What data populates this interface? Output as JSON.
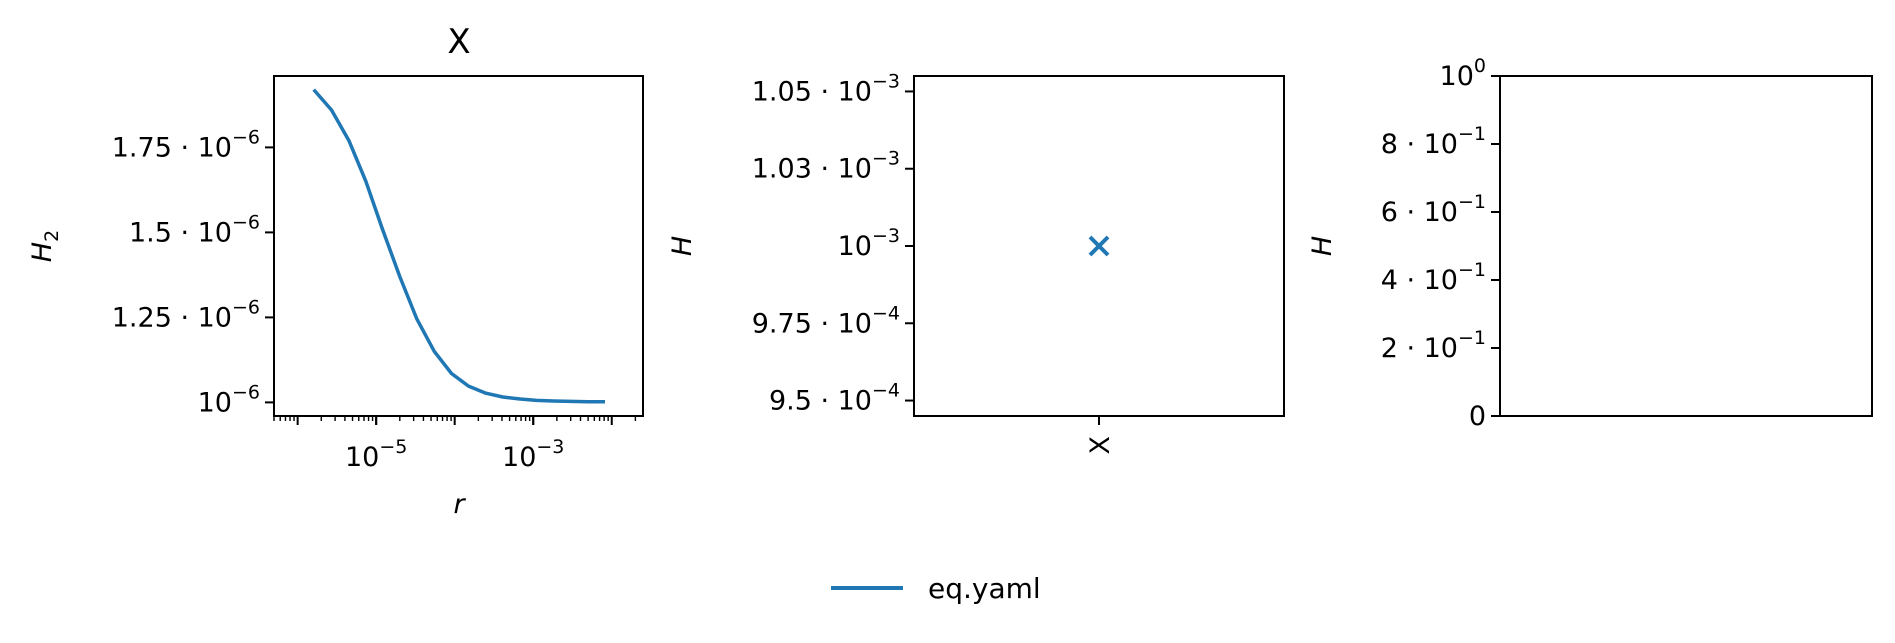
{
  "figure": {
    "legend": {
      "label": "eq.yaml",
      "color": "#1f77b4",
      "placement": "bottom-center"
    }
  },
  "chart_data": [
    {
      "type": "line",
      "title": "X",
      "xlabel": "r",
      "ylabel": "H",
      "ylabel_sub": "2",
      "xscale": "log",
      "xlim": [
        5e-07,
        0.025
      ],
      "ylim": [
        9.6e-07,
        1.96e-06
      ],
      "xticks": [
        {
          "value": 1e-05,
          "base": "10",
          "exp": "−5"
        },
        {
          "value": 0.001,
          "base": "10",
          "exp": "−3"
        }
      ],
      "yticks": [
        {
          "value": 1e-06,
          "mant": "",
          "base": "10",
          "exp": "−6"
        },
        {
          "value": 1.25e-06,
          "mant": "1.25 · ",
          "base": "10",
          "exp": "−6"
        },
        {
          "value": 1.5e-06,
          "mant": "1.5 · ",
          "base": "10",
          "exp": "−6"
        },
        {
          "value": 1.75e-06,
          "mant": "1.75 · ",
          "base": "10",
          "exp": "−6"
        }
      ],
      "series": [
        {
          "name": "eq.yaml",
          "color": "#1f77b4",
          "x": [
            1.6e-06,
            2.7e-06,
            4.5e-06,
            7.4e-06,
            1.2e-05,
            2e-05,
            3.3e-05,
            5.5e-05,
            9.1e-05,
            0.00015,
            0.00025,
            0.00041,
            0.00068,
            0.0011,
            0.0018,
            0.003,
            0.005,
            0.0082
          ],
          "y": [
            1.92e-06,
            1.86e-06,
            1.77e-06,
            1.65e-06,
            1.51e-06,
            1.37e-06,
            1.245e-06,
            1.15e-06,
            1.085e-06,
            1.048e-06,
            1.027e-06,
            1.016e-06,
            1.01e-06,
            1.006e-06,
            1.004e-06,
            1.003e-06,
            1.002e-06,
            1.002e-06
          ]
        }
      ],
      "grid": false
    },
    {
      "type": "scatter",
      "title": "",
      "xlabel": "",
      "ylabel": "H",
      "categories": [
        "X"
      ],
      "ylim": [
        0.000945,
        0.001055
      ],
      "yticks": [
        {
          "value": 0.00095,
          "mant": "9.5 · ",
          "base": "10",
          "exp": "−4"
        },
        {
          "value": 0.000975,
          "mant": "9.75 · ",
          "base": "10",
          "exp": "−4"
        },
        {
          "value": 0.001,
          "mant": "",
          "base": "10",
          "exp": "−3"
        },
        {
          "value": 0.001025,
          "mant": "1.03 · ",
          "base": "10",
          "exp": "−3"
        },
        {
          "value": 0.00105,
          "mant": "1.05 · ",
          "base": "10",
          "exp": "−3"
        }
      ],
      "series": [
        {
          "color": "#1f77b4",
          "marker": "x",
          "points": [
            {
              "x": "X",
              "y": 0.001
            }
          ]
        }
      ],
      "grid": false
    },
    {
      "type": "scatter",
      "title": "",
      "xlabel": "",
      "ylabel": "H",
      "ylim": [
        0,
        1
      ],
      "yticks": [
        {
          "value": 0,
          "mant": "0",
          "base": "",
          "exp": ""
        },
        {
          "value": 0.2,
          "mant": "2 · ",
          "base": "10",
          "exp": "−1"
        },
        {
          "value": 0.4,
          "mant": "4 · ",
          "base": "10",
          "exp": "−1"
        },
        {
          "value": 0.6,
          "mant": "6 · ",
          "base": "10",
          "exp": "−1"
        },
        {
          "value": 0.8,
          "mant": "8 · ",
          "base": "10",
          "exp": "−1"
        },
        {
          "value": 1,
          "mant": "",
          "base": "10",
          "exp": "0"
        }
      ],
      "series": [],
      "grid": false
    }
  ]
}
